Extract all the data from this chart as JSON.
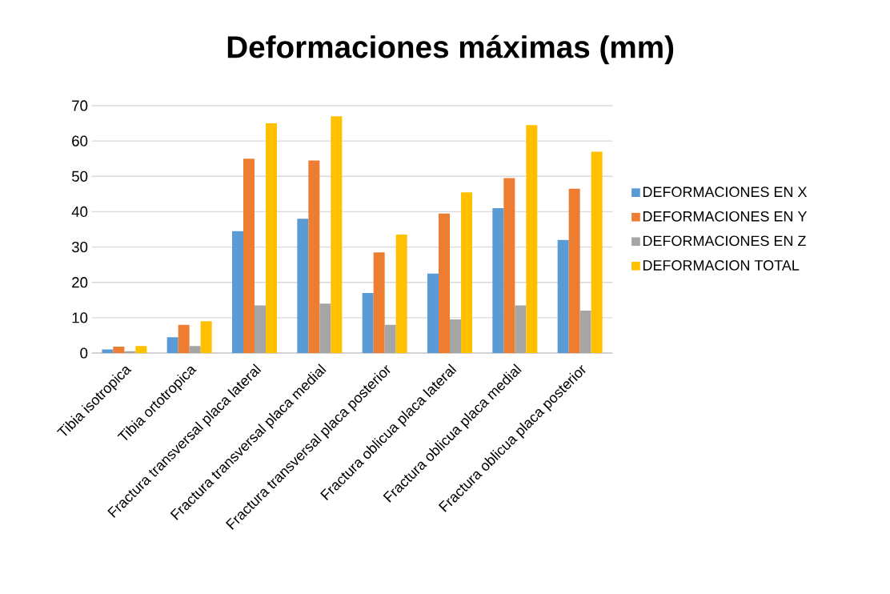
{
  "chart_data": {
    "type": "bar",
    "title": "Deformaciones máximas (mm)",
    "categories": [
      "Tibia isotropica",
      "Tibia ortotropica",
      "Fractura transversal placa lateral",
      "Fractura transversal placa medial",
      "Fractura transversal placa posterior",
      "Fractura oblicua placa lateral",
      "Fractura oblicua placa medial",
      "Fractura oblicua placa posterior"
    ],
    "series": [
      {
        "name": "DEFORMACIONES EN X",
        "color": "#5b9bd5",
        "values": [
          1,
          4.5,
          34.5,
          38,
          17,
          22.5,
          41,
          32
        ]
      },
      {
        "name": "DEFORMACIONES EN Y",
        "color": "#ed7d31",
        "values": [
          1.8,
          8,
          55,
          54.5,
          28.5,
          39.5,
          49.5,
          46.5
        ]
      },
      {
        "name": "DEFORMACIONES EN Z",
        "color": "#a5a5a5",
        "values": [
          0.5,
          2,
          13.5,
          14,
          8,
          9.5,
          13.5,
          12
        ]
      },
      {
        "name": "DEFORMACION TOTAL",
        "color": "#ffc000",
        "values": [
          2,
          9,
          65,
          67,
          33.5,
          45.5,
          64.5,
          57
        ]
      }
    ],
    "ylim": [
      0,
      70
    ],
    "yticks": [
      0,
      10,
      20,
      30,
      40,
      50,
      60,
      70
    ],
    "grid": "y",
    "legend": "right"
  }
}
